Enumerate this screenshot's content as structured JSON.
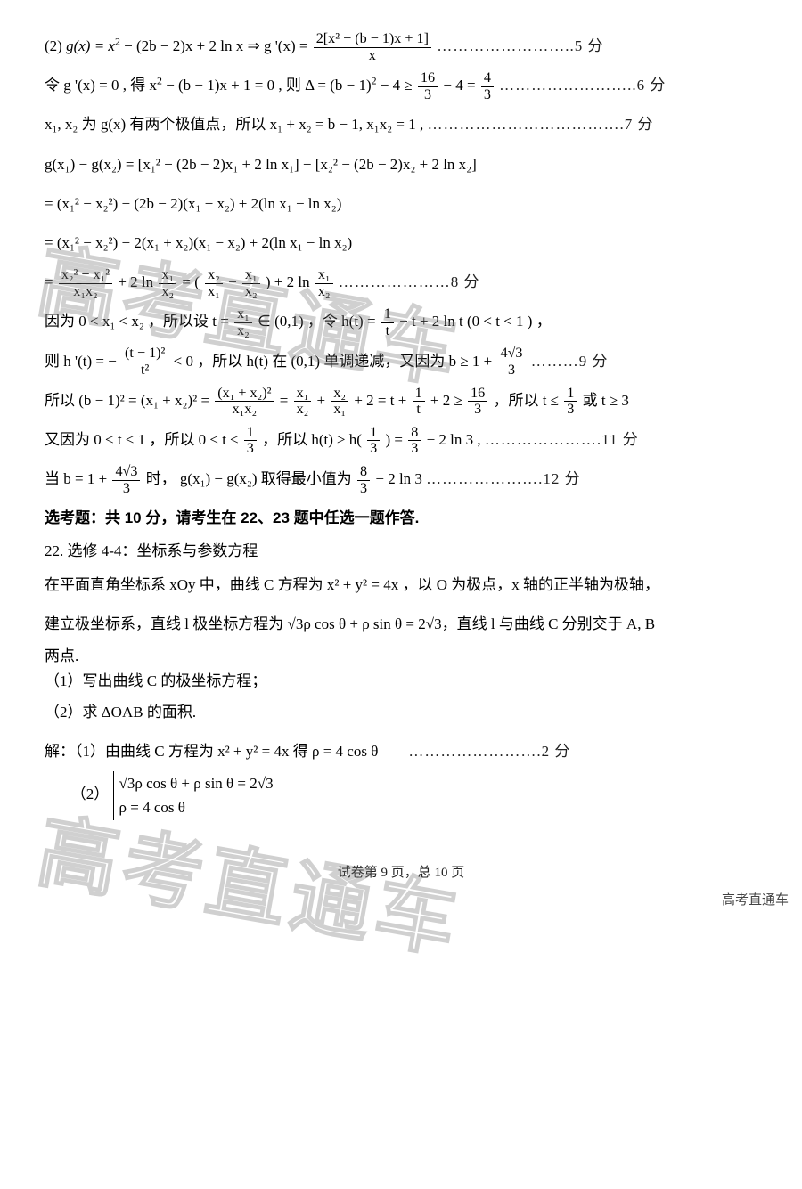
{
  "watermark_text": "高考直通车",
  "watermark_corner": "高考直通车",
  "l1_a": "(2) ",
  "l1_b": "g(x) = x",
  "l1_c": " − (2b − 2)x + 2 ln x ⇒ g '(x) = ",
  "l1_num": "2[x² − (b − 1)x + 1]",
  "l1_den": "x",
  "l1_dots": "……………………..5 分",
  "l2_a": "令 g '(x) = 0 , 得 x",
  "l2_b": " − (b − 1)x + 1 = 0 , 则 Δ = (b − 1)",
  "l2_c": " − 4 ≥ ",
  "l2_f1n": "16",
  "l2_f1d": "3",
  "l2_d": " − 4 = ",
  "l2_f2n": "4",
  "l2_f2d": "3",
  "l2_dots": "……………………..6 分",
  "l3": "x₁, x₂ 为 g(x) 有两个极值点，所以 x₁ + x₂ = b − 1, x₁x₂ = 1 , ",
  "l3_dots": "……………………………….7 分",
  "l4": "g(x₁) − g(x₂) = [x₁² − (2b − 2)x₁ + 2 ln x₁] − [x₂² − (2b − 2)x₂ + 2 ln x₂]",
  "l5": "= (x₁² − x₂²) − (2b − 2)(x₁ − x₂) + 2(ln x₁ − ln x₂)",
  "l6": "= (x₁² − x₂²) − 2(x₁ + x₂)(x₁ − x₂) + 2(ln x₁ − ln x₂)",
  "l7_a": "= ",
  "l7_f1n": "x₂² − x₁²",
  "l7_f1d": "x₁x₂",
  "l7_b": " + 2 ln ",
  "l7_f2n": "x₁",
  "l7_f2d": "x₂",
  "l7_c": " = (",
  "l7_f3n": "x₂",
  "l7_f3d": "x₁",
  "l7_d": " − ",
  "l7_f4n": "x₁",
  "l7_f4d": "x₂",
  "l7_e": ") + 2 ln ",
  "l7_f5n": "x₁",
  "l7_f5d": "x₂",
  "l7_dots": "…………………8 分",
  "l8_a": "因为 0 < x₁ < x₂ ，所以设 t = ",
  "l8_f1n": "x₁",
  "l8_f1d": "x₂",
  "l8_b": " ∈ (0,1) ，令 h(t) = ",
  "l8_f2n": "1",
  "l8_f2d": "t",
  "l8_c": " − t + 2 ln t (0 < t < 1 ) ，",
  "l9_a": "则 h '(t) = − ",
  "l9_f1n": "(t − 1)²",
  "l9_f1d": "t²",
  "l9_b": " < 0 ，所以 h(t) 在 (0,1) 单调递减，又因为 b ≥ 1 + ",
  "l9_f2n": "4√3",
  "l9_f2d": "3",
  "l9_dots": " ………9 分",
  "l10_a": "所以 (b − 1)² = (x₁ + x₂)² = ",
  "l10_f1n": "(x₁ + x₂)²",
  "l10_f1d": "x₁x₂",
  "l10_b": " = ",
  "l10_f2n": "x₁",
  "l10_f2d": "x₂",
  "l10_c": " + ",
  "l10_f3n": "x₂",
  "l10_f3d": "x₁",
  "l10_d": " + 2 = t + ",
  "l10_f4n": "1",
  "l10_f4d": "t",
  "l10_e": " + 2 ≥ ",
  "l10_f5n": "16",
  "l10_f5d": "3",
  "l10_f": "，所以  t ≤ ",
  "l10_f6n": "1",
  "l10_f6d": "3",
  "l10_g": " 或 t ≥ 3",
  "l11_a": "又因为 0 < t < 1 ，所以 0 < t ≤ ",
  "l11_f1n": "1",
  "l11_f1d": "3",
  "l11_b": " ，所以 h(t) ≥ h(",
  "l11_f2n": "1",
  "l11_f2d": "3",
  "l11_c": ") = ",
  "l11_f3n": "8",
  "l11_f3d": "3",
  "l11_d": " − 2 ln 3 , ",
  "l11_dots": "………………….11 分",
  "l12_a": "当 b = 1 + ",
  "l12_f1n": "4√3",
  "l12_f1d": "3",
  "l12_b": " 时， g(x₁) − g(x₂) 取得最小值为 ",
  "l12_f2n": "8",
  "l12_f2d": "3",
  "l12_c": " − 2 ln 3",
  "l12_dots": " ………………….12 分",
  "sec_bold": "选考题：共 10 分，请考生在 22、23 题中任选一题作答.",
  "q22": "22.  选修 4-4：坐标系与参数方程",
  "q22_p1": "在平面直角坐标系 xOy 中，曲线 C 方程为 x² + y² = 4x ，以 O 为极点，x 轴的正半轴为极轴，",
  "q22_p2a": "建立极坐标系，直线 l 极坐标方程为 ",
  "q22_p2b": "ρ cos θ + ρ sin θ = 2",
  "q22_p2c": "，直线 l 与曲线 C 分别交于 A, B",
  "q22_p3": "两点.",
  "q22_s1": "（1）写出曲线 C 的极坐标方程；",
  "q22_s2": "（2）求 ΔOAB 的面积.",
  "sol_a": "解：（1）由曲线 C 方程为 x² + y² = 4x 得    ρ = 4 cos θ",
  "sol_dots": "…………………….2 分",
  "sol2_lab": "（2）",
  "sol2_r1a": "ρ cos θ + ρ sin θ = 2",
  "sol2_r2": "ρ = 4 cos θ",
  "footer": "试卷第 9 页，总 10 页"
}
